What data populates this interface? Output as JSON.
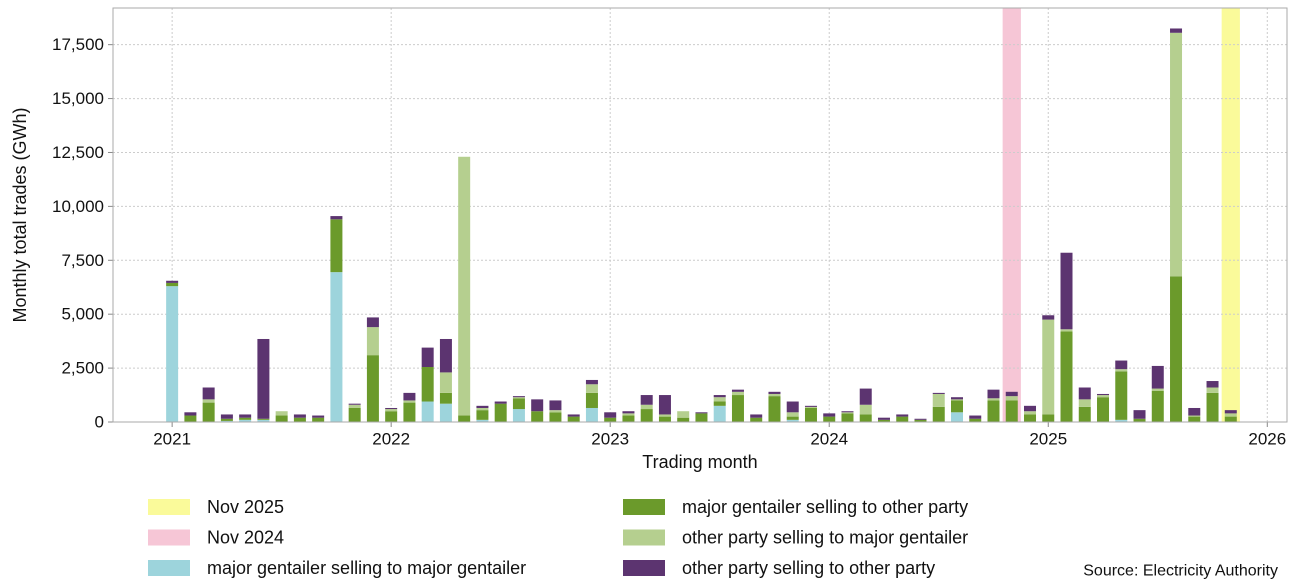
{
  "chart_data": {
    "type": "stacked_bar",
    "x_label": "Trading month",
    "y_label": "Monthly total trades (GWh)",
    "source": "Source: Electricity Authority",
    "x": [
      "2021-01",
      "2021-02",
      "2021-03",
      "2021-04",
      "2021-05",
      "2021-06",
      "2021-07",
      "2021-08",
      "2021-09",
      "2021-10",
      "2021-11",
      "2021-12",
      "2022-01",
      "2022-02",
      "2022-03",
      "2022-04",
      "2022-05",
      "2022-06",
      "2022-07",
      "2022-08",
      "2022-09",
      "2022-10",
      "2022-11",
      "2022-12",
      "2023-01",
      "2023-02",
      "2023-03",
      "2023-04",
      "2023-05",
      "2023-06",
      "2023-07",
      "2023-08",
      "2023-09",
      "2023-10",
      "2023-11",
      "2023-12",
      "2024-01",
      "2024-02",
      "2024-03",
      "2024-04",
      "2024-05",
      "2024-06",
      "2024-07",
      "2024-08",
      "2024-09",
      "2024-10",
      "2024-11",
      "2024-12",
      "2025-01",
      "2025-02",
      "2025-03",
      "2025-04",
      "2025-05",
      "2025-06",
      "2025-07",
      "2025-08",
      "2025-09",
      "2025-10",
      "2025-11"
    ],
    "series": [
      {
        "name": "major gentailer selling to major gentailer",
        "color": "#9dd4dc",
        "values": [
          6300,
          0,
          0,
          50,
          100,
          100,
          0,
          0,
          0,
          6950,
          0,
          0,
          0,
          0,
          950,
          850,
          0,
          100,
          0,
          600,
          0,
          0,
          0,
          650,
          0,
          0,
          0,
          0,
          0,
          0,
          750,
          0,
          0,
          0,
          100,
          0,
          0,
          0,
          0,
          0,
          0,
          0,
          0,
          450,
          0,
          0,
          0,
          0,
          0,
          0,
          0,
          0,
          100,
          0,
          0,
          0,
          0,
          0,
          0
        ]
      },
      {
        "name": "major gentailer selling to other party",
        "color": "#6b9a2b",
        "values": [
          150,
          300,
          900,
          100,
          100,
          50,
          300,
          200,
          200,
          2450,
          650,
          3100,
          500,
          900,
          1600,
          500,
          300,
          450,
          850,
          500,
          500,
          450,
          250,
          700,
          200,
          300,
          600,
          250,
          200,
          400,
          200,
          1250,
          200,
          1200,
          150,
          650,
          250,
          400,
          350,
          100,
          250,
          100,
          700,
          550,
          150,
          1000,
          1000,
          350,
          350,
          4200,
          700,
          1150,
          2250,
          150,
          1450,
          6750,
          250,
          1350,
          250
        ]
      },
      {
        "name": "other party selling to major gentailer",
        "color": "#b5cf8f",
        "values": [
          0,
          0,
          150,
          0,
          0,
          0,
          200,
          0,
          0,
          0,
          150,
          1300,
          100,
          100,
          0,
          950,
          12000,
          100,
          0,
          50,
          0,
          100,
          0,
          400,
          0,
          100,
          200,
          100,
          300,
          0,
          200,
          150,
          0,
          100,
          200,
          50,
          0,
          50,
          450,
          0,
          0,
          0,
          600,
          50,
          0,
          100,
          200,
          150,
          4400,
          100,
          350,
          100,
          100,
          0,
          100,
          11300,
          50,
          250,
          150
        ]
      },
      {
        "name": "other party selling to other party",
        "color": "#5c3470",
        "values": [
          100,
          150,
          550,
          200,
          150,
          3700,
          0,
          150,
          100,
          150,
          50,
          450,
          50,
          350,
          900,
          1550,
          0,
          100,
          100,
          50,
          550,
          450,
          100,
          200,
          250,
          100,
          450,
          900,
          0,
          50,
          100,
          100,
          150,
          100,
          500,
          50,
          150,
          50,
          750,
          100,
          100,
          50,
          50,
          100,
          150,
          400,
          200,
          250,
          200,
          3550,
          550,
          50,
          400,
          400,
          1050,
          200,
          350,
          300,
          150
        ]
      }
    ],
    "highlights": [
      {
        "name": "Nov 2025",
        "x": "2025-11",
        "color": "#fafa9a"
      },
      {
        "name": "Nov 2024",
        "x": "2024-11",
        "color": "#f6c6d6"
      }
    ],
    "xlim": [
      2020.73,
      2026.09
    ],
    "xticks": [
      2021,
      2022,
      2023,
      2024,
      2025,
      2026
    ],
    "ylim": [
      0,
      19200
    ],
    "yticks": [
      0,
      {
        "value": 2500,
        "label": "2,500"
      },
      {
        "value": 5000,
        "label": "5,000"
      },
      {
        "value": 7500,
        "label": "7,500"
      },
      {
        "value": 10000,
        "label": "10,000"
      },
      {
        "value": 12500,
        "label": "12,500"
      },
      {
        "value": 15000,
        "label": "15,000"
      },
      {
        "value": 17500,
        "label": "17,500"
      }
    ],
    "grid": true
  }
}
